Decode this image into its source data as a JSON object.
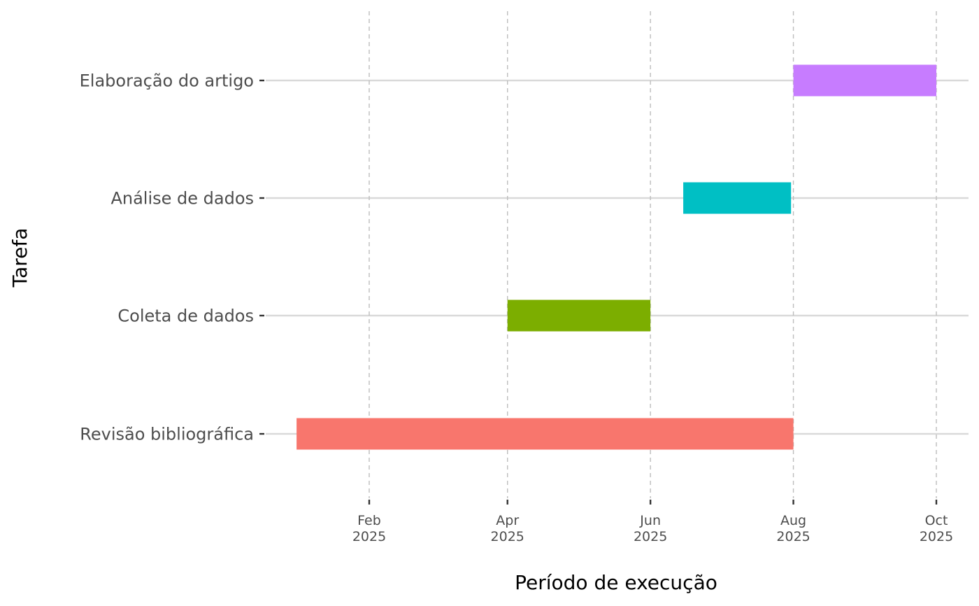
{
  "chart_data": {
    "type": "gantt",
    "title": "",
    "xlabel": "Período de execução",
    "ylabel": "Tarefa",
    "x_axis": "date",
    "xlim": [
      "2025-01-01",
      "2025-10-01"
    ],
    "x_ticks": [
      {
        "date": "2025-02-01",
        "month": "Feb",
        "year": "2025"
      },
      {
        "date": "2025-04-01",
        "month": "Apr",
        "year": "2025"
      },
      {
        "date": "2025-06-01",
        "month": "Jun",
        "year": "2025"
      },
      {
        "date": "2025-08-01",
        "month": "Aug",
        "year": "2025"
      },
      {
        "date": "2025-10-01",
        "month": "Oct",
        "year": "2025"
      }
    ],
    "categories": [
      "Revisão bibliográfica",
      "Coleta de dados",
      "Análise de dados",
      "Elaboração do artigo"
    ],
    "tasks": [
      {
        "name": "Revisão bibliográfica",
        "start": "2025-01-01",
        "end": "2025-08-01",
        "color": "#F8766D"
      },
      {
        "name": "Coleta de dados",
        "start": "2025-04-01",
        "end": "2025-06-01",
        "color": "#7CAE00"
      },
      {
        "name": "Análise de dados",
        "start": "2025-06-15",
        "end": "2025-07-31",
        "color": "#00BFC4"
      },
      {
        "name": "Elaboração do artigo",
        "start": "2025-08-01",
        "end": "2025-10-01",
        "color": "#C77CFF"
      }
    ],
    "grid": {
      "major_y": true,
      "major_x_dashed": true
    },
    "legend": "none"
  }
}
